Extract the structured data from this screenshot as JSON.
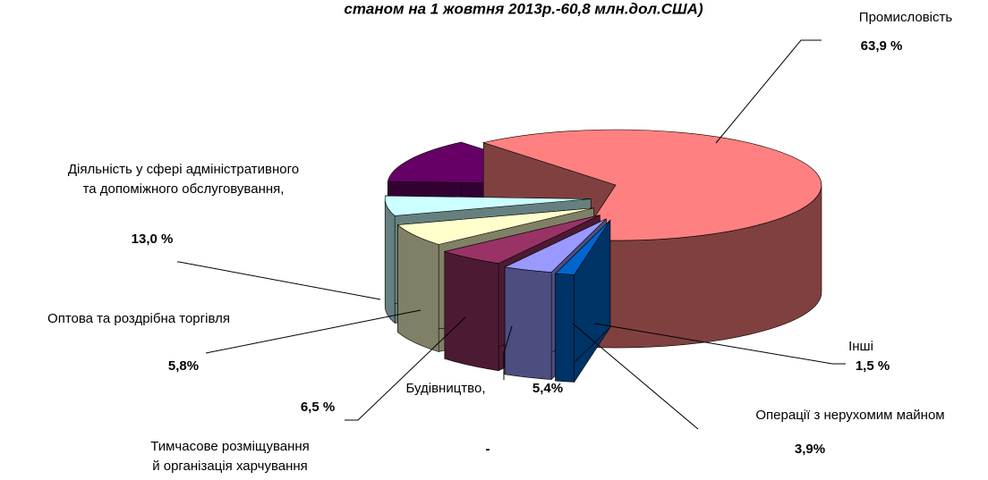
{
  "chart_data": {
    "type": "pie3d",
    "title": "станом на 1 жовтня 2013р.-60,8  млн.дол.США)",
    "categories": [
      [
        "Промисловість"
      ],
      [
        "Інші"
      ],
      [
        "Операції з нерухомим майном"
      ],
      [
        "Будівництво,"
      ],
      [
        "Тимчасове розміщування",
        " й організація харчування"
      ],
      [
        "Оптова та роздрібна торгівля"
      ],
      [
        "Діяльність у сфері адміністративного",
        "та допоміжного обслуговування,"
      ]
    ],
    "values": [
      63.9,
      1.5,
      3.9,
      5.4,
      6.5,
      5.8,
      13.0
    ],
    "value_labels": [
      "63,9 %",
      "1,5 %",
      "3,9%",
      "5,4%",
      "6,5 %",
      "5,8%",
      "13,0 %"
    ],
    "colors": [
      "#ff8080",
      "#0066cc",
      "#9999ff",
      "#993366",
      "#ffffcc",
      "#ccffff",
      "#660066"
    ],
    "annotation": "-"
  }
}
